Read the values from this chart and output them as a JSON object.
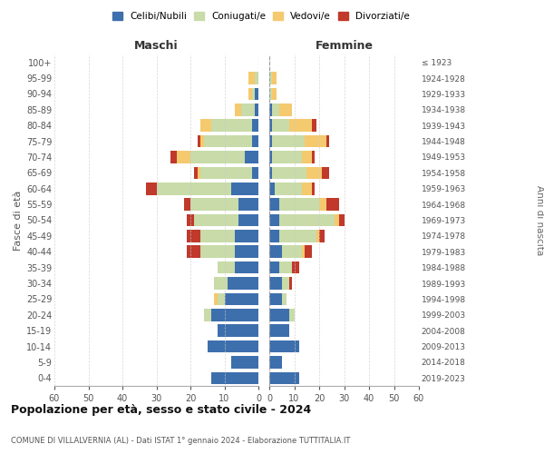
{
  "age_groups": [
    "0-4",
    "5-9",
    "10-14",
    "15-19",
    "20-24",
    "25-29",
    "30-34",
    "35-39",
    "40-44",
    "45-49",
    "50-54",
    "55-59",
    "60-64",
    "65-69",
    "70-74",
    "75-79",
    "80-84",
    "85-89",
    "90-94",
    "95-99",
    "100+"
  ],
  "birth_years": [
    "2019-2023",
    "2014-2018",
    "2009-2013",
    "2004-2008",
    "1999-2003",
    "1994-1998",
    "1989-1993",
    "1984-1988",
    "1979-1983",
    "1974-1978",
    "1969-1973",
    "1964-1968",
    "1959-1963",
    "1954-1958",
    "1949-1953",
    "1944-1948",
    "1939-1943",
    "1934-1938",
    "1929-1933",
    "1924-1928",
    "≤ 1923"
  ],
  "maschi": {
    "celibi": [
      14,
      8,
      15,
      12,
      14,
      10,
      9,
      7,
      7,
      7,
      6,
      6,
      8,
      2,
      4,
      2,
      2,
      1,
      1,
      0,
      0
    ],
    "coniugati": [
      0,
      0,
      0,
      0,
      2,
      2,
      4,
      5,
      10,
      10,
      13,
      14,
      22,
      15,
      16,
      14,
      12,
      4,
      1,
      1,
      0
    ],
    "vedovi": [
      0,
      0,
      0,
      0,
      0,
      1,
      0,
      0,
      0,
      0,
      0,
      0,
      0,
      1,
      4,
      1,
      3,
      2,
      1,
      2,
      0
    ],
    "divorziati": [
      0,
      0,
      0,
      0,
      0,
      0,
      0,
      0,
      4,
      4,
      2,
      2,
      3,
      1,
      2,
      1,
      0,
      0,
      0,
      0,
      0
    ]
  },
  "femmine": {
    "nubili": [
      12,
      5,
      12,
      8,
      8,
      5,
      5,
      4,
      5,
      4,
      4,
      4,
      2,
      1,
      1,
      1,
      1,
      1,
      0,
      0,
      0
    ],
    "coniugate": [
      0,
      0,
      0,
      0,
      2,
      2,
      3,
      5,
      8,
      15,
      22,
      16,
      11,
      14,
      12,
      13,
      7,
      3,
      1,
      1,
      0
    ],
    "vedove": [
      0,
      0,
      0,
      0,
      0,
      0,
      0,
      0,
      1,
      1,
      2,
      3,
      4,
      6,
      4,
      9,
      9,
      5,
      2,
      2,
      0
    ],
    "divorziate": [
      0,
      0,
      0,
      0,
      0,
      0,
      1,
      3,
      3,
      2,
      2,
      5,
      1,
      3,
      1,
      1,
      2,
      0,
      0,
      0,
      0
    ]
  },
  "colors": {
    "celibi": "#3d6fad",
    "coniugati": "#c8dba8",
    "vedovi": "#f5c96e",
    "divorziati": "#c0392b"
  },
  "legend_labels": [
    "Celibi/Nubili",
    "Coniugati/e",
    "Vedovi/e",
    "Divorziati/e"
  ],
  "title": "Popolazione per età, sesso e stato civile - 2024",
  "subtitle": "COMUNE DI VILLALVERNIA (AL) - Dati ISTAT 1° gennaio 2024 - Elaborazione TUTTITALIA.IT",
  "ylabel_left": "Fasce di età",
  "ylabel_right": "Anni di nascita",
  "xlabel_maschi": "Maschi",
  "xlabel_femmine": "Femmine",
  "xlim": 60,
  "bg_color": "#ffffff",
  "grid_color": "#cccccc"
}
